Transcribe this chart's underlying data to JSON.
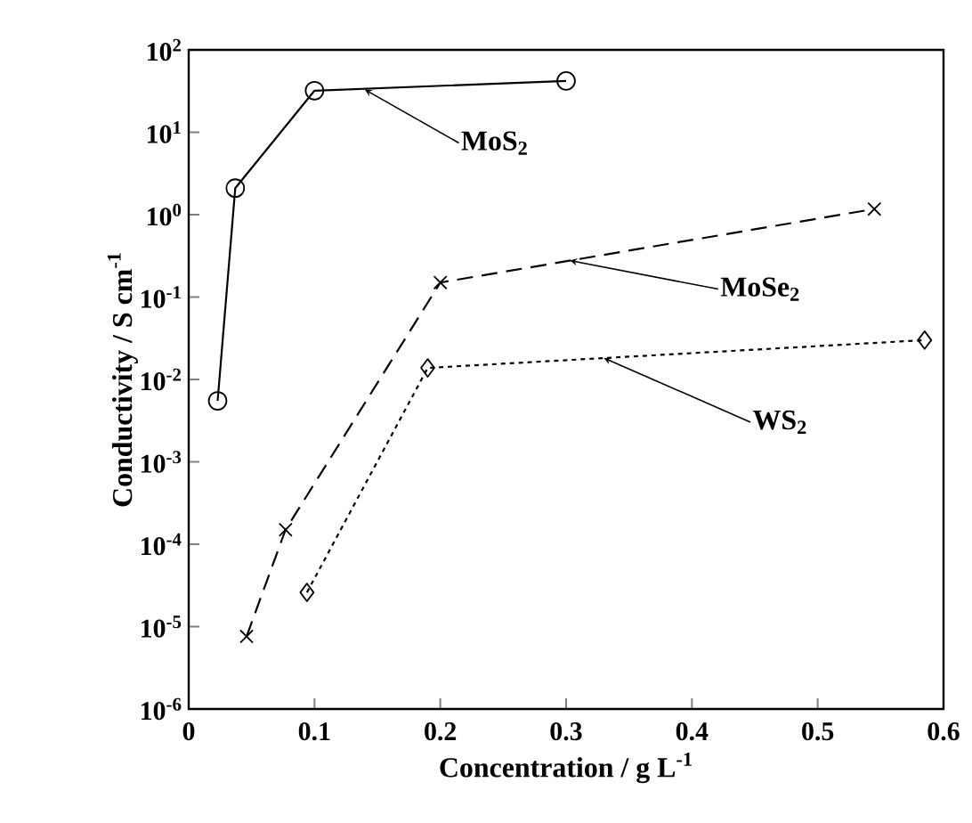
{
  "chart_data": {
    "type": "line",
    "xlabel": "Concentration / g L$^{-1}$",
    "ylabel": "Conductivity / S cm$^{-1}$",
    "xlim": [
      0,
      0.6
    ],
    "xticks": [
      0,
      0.1,
      0.2,
      0.3,
      0.4,
      0.5,
      0.6
    ],
    "ylim": [
      1e-06,
      100
    ],
    "log": "y",
    "yticks": [
      {
        "value": 1e-06,
        "label": "10$^{-6}$"
      },
      {
        "value": 1e-05,
        "label": "10$^{-5}$"
      },
      {
        "value": 0.0001,
        "label": "10$^{-4}$"
      },
      {
        "value": 0.001,
        "label": "10$^{-3}$"
      },
      {
        "value": 0.01,
        "label": "10$^{-2}$"
      },
      {
        "value": 0.1,
        "label": "10$^{-1}$"
      },
      {
        "value": 1,
        "label": "10$^{0}$"
      },
      {
        "value": 10,
        "label": "10$^{1}$"
      },
      {
        "value": 100,
        "label": "10$^{2}$"
      }
    ],
    "grid": false,
    "series": [
      {
        "color": "#000000",
        "marker": "circle",
        "line_style": "solid",
        "x": [
          0.023,
          0.037,
          0.1,
          0.3
        ],
        "values": [
          0.0055,
          2.1,
          32,
          42
        ]
      },
      {
        "color": "#000000",
        "marker": "cross",
        "line_style": "dashed",
        "x": [
          0.046,
          0.077,
          0.2,
          0.545
        ],
        "values": [
          7.6e-06,
          0.00015,
          0.15,
          1.17
        ]
      },
      {
        "color": "#000000",
        "marker": "diamond",
        "line_style": "dotted",
        "x": [
          0.094,
          0.19,
          0.585
        ],
        "values": [
          2.6e-05,
          0.0138,
          0.03
        ]
      }
    ],
    "annotations": [
      {
        "text": "MoS$_{2}$",
        "x": 0.14,
        "y": 33
      },
      {
        "text": "MoSe$_{2}$",
        "x": 0.303,
        "y": 0.277
      },
      {
        "text": "WS$_{2}$",
        "x": 0.33,
        "y": 0.0182
      }
    ]
  }
}
